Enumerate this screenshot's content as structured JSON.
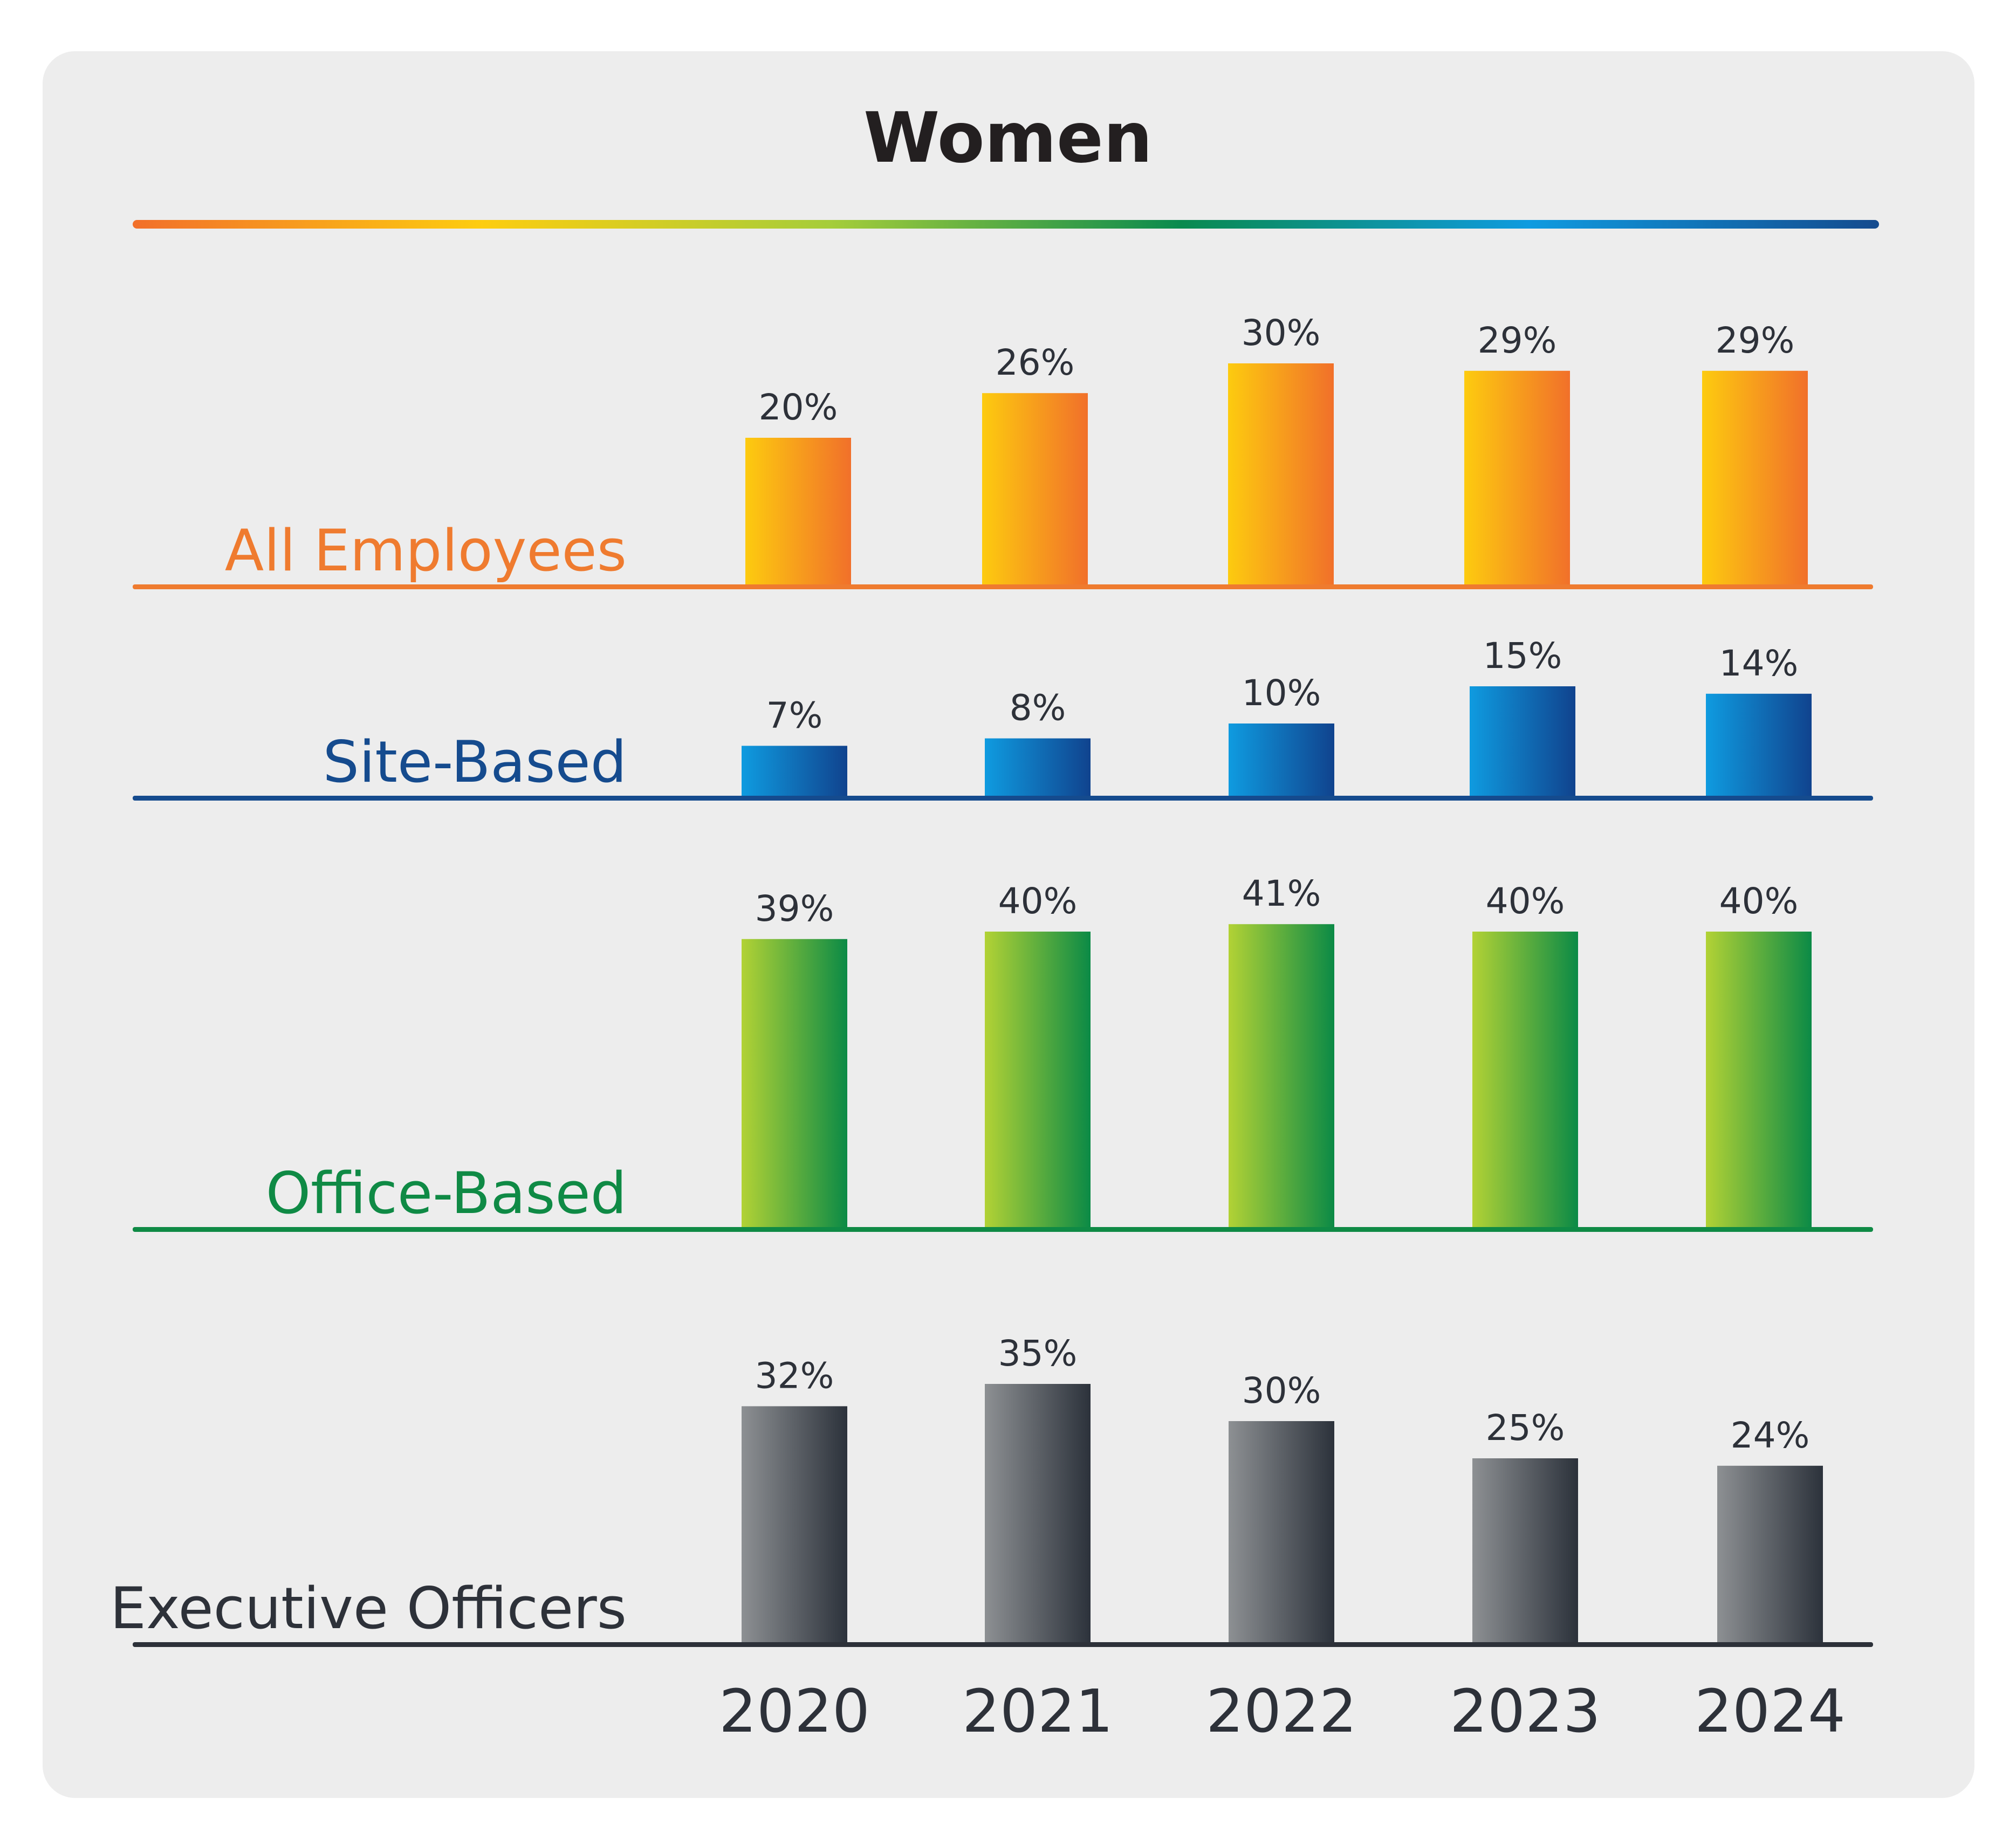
{
  "title": "Women",
  "chart_data": {
    "type": "bar",
    "title": "Women",
    "categories": [
      "2020",
      "2021",
      "2022",
      "2023",
      "2024"
    ],
    "unit": "%",
    "series": [
      {
        "name": "All Employees",
        "values": [
          20,
          26,
          30,
          29,
          29
        ],
        "labels": [
          "20%",
          "26%",
          "30%",
          "29%",
          "29%"
        ],
        "colors": {
          "label": "#ef7b2f",
          "baseline": "#ef7b2f",
          "bar_start": "#fdcb0f",
          "bar_end": "#f1702a"
        }
      },
      {
        "name": "Site-Based",
        "values": [
          7,
          8,
          10,
          15,
          14
        ],
        "labels": [
          "7%",
          "8%",
          "10%",
          "15%",
          "14%"
        ],
        "colors": {
          "label": "#154b8e",
          "baseline": "#154b8e",
          "bar_start": "#0f9be0",
          "bar_end": "#10438e"
        }
      },
      {
        "name": "Office-Based",
        "values": [
          39,
          40,
          41,
          40,
          40
        ],
        "labels": [
          "39%",
          "40%",
          "41%",
          "40%",
          "40%"
        ],
        "colors": {
          "label": "#0f8a45",
          "baseline": "#0f8a45",
          "bar_start": "#b2d235",
          "bar_end": "#0b8a46"
        }
      },
      {
        "name": "Executive Officers",
        "values": [
          32,
          35,
          30,
          25,
          24
        ],
        "labels": [
          "32%",
          "35%",
          "30%",
          "25%",
          "24%"
        ],
        "colors": {
          "label": "#2d3139",
          "baseline": "#2d3139",
          "bar_start": "#8d9093",
          "bar_end": "#2c323b"
        }
      }
    ],
    "legend": "none",
    "grid": false
  },
  "colors": {
    "background": "#ededed",
    "title_rule_gradient": [
      "#f26f2a",
      "#fdcd10",
      "#a5cd3a",
      "#0a8a4e",
      "#0f9be0",
      "#154b8e"
    ]
  }
}
